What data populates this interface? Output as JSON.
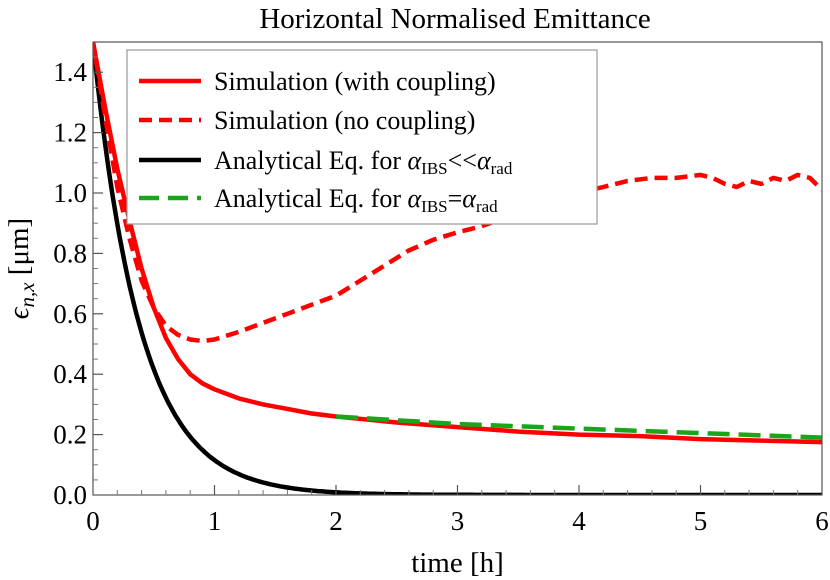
{
  "chart_data": {
    "type": "line",
    "title": "Horizontal Normalised Emittance",
    "xlabel": "time [h]",
    "ylabel": {
      "symbol": "ϵ",
      "subscript": "n,x",
      "unit": " [μm]"
    },
    "xlim": [
      0,
      6
    ],
    "ylim": [
      0,
      1.5
    ],
    "x_ticks": [
      "0",
      "1",
      "2",
      "3",
      "4",
      "5",
      "6"
    ],
    "y_ticks": [
      "0.0",
      "0.2",
      "0.4",
      "0.6",
      "0.8",
      "1.0",
      "1.2",
      "1.4"
    ],
    "grid": false,
    "legend_position": "top-left",
    "series": [
      {
        "name": "Simulation (with coupling)",
        "color": "#ff0000",
        "style": "solid",
        "x": [
          0,
          0.1,
          0.2,
          0.3,
          0.4,
          0.5,
          0.6,
          0.7,
          0.8,
          0.9,
          1.0,
          1.2,
          1.4,
          1.6,
          1.8,
          2.0,
          2.5,
          3.0,
          3.5,
          4.0,
          4.5,
          5.0,
          5.5,
          6.0
        ],
        "y": [
          1.5,
          1.28,
          1.08,
          0.91,
          0.75,
          0.62,
          0.52,
          0.45,
          0.4,
          0.37,
          0.35,
          0.32,
          0.3,
          0.285,
          0.27,
          0.26,
          0.24,
          0.225,
          0.21,
          0.2,
          0.195,
          0.185,
          0.18,
          0.175
        ]
      },
      {
        "name": "Simulation (no coupling)",
        "color": "#ff0000",
        "style": "dashed",
        "x": [
          0,
          0.1,
          0.2,
          0.3,
          0.4,
          0.5,
          0.6,
          0.7,
          0.8,
          0.9,
          1.0,
          1.2,
          1.4,
          1.6,
          1.8,
          2.0,
          2.2,
          2.4,
          2.6,
          2.8,
          3.0,
          3.2,
          3.4,
          3.6,
          3.8,
          4.0,
          4.2,
          4.4,
          4.6,
          4.8,
          5.0,
          5.1,
          5.2,
          5.3,
          5.4,
          5.5,
          5.6,
          5.7,
          5.8,
          5.9,
          6.0
        ],
        "y": [
          1.5,
          1.25,
          1.02,
          0.85,
          0.71,
          0.62,
          0.56,
          0.53,
          0.515,
          0.51,
          0.515,
          0.54,
          0.57,
          0.6,
          0.63,
          0.66,
          0.71,
          0.76,
          0.81,
          0.845,
          0.87,
          0.89,
          0.92,
          0.95,
          0.97,
          1.0,
          1.02,
          1.04,
          1.05,
          1.05,
          1.06,
          1.05,
          1.03,
          1.02,
          1.04,
          1.03,
          1.05,
          1.04,
          1.06,
          1.05,
          1.01
        ]
      },
      {
        "name": "Analytical Eq. for αIBS<<αrad",
        "legend_parts": [
          "Analytical Eq. for ",
          "α",
          "IBS",
          "<<",
          "α",
          "rad"
        ],
        "color": "#000000",
        "style": "solid",
        "function": "exp_decay",
        "y0": 1.5,
        "tau_h": 0.39
      },
      {
        "name": "Analytical Eq. for αIBS=αrad",
        "legend_parts": [
          "Analytical Eq. for ",
          "α",
          "IBS",
          "=",
          "α",
          "rad"
        ],
        "color": "#1aa61a",
        "style": "longdash",
        "x": [
          2.0,
          3.0,
          4.0,
          5.0,
          6.0
        ],
        "y": [
          0.26,
          0.235,
          0.22,
          0.205,
          0.19
        ]
      }
    ]
  }
}
